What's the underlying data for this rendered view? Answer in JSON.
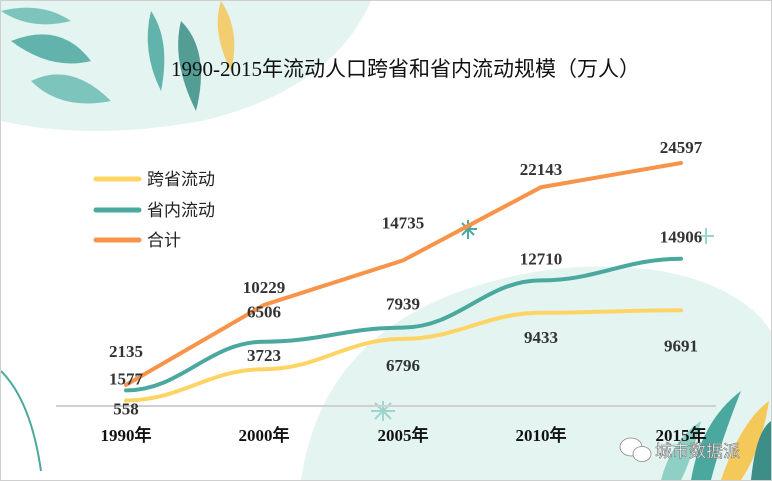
{
  "chart_data": {
    "type": "line",
    "title": "1990-2015年流动人口跨省和省内流动规模（万人）",
    "categories": [
      "1990年",
      "2000年",
      "2005年",
      "2010年",
      "2015年"
    ],
    "series": [
      {
        "name": "跨省流动",
        "color": "#FFD465",
        "values": [
          558,
          3723,
          6796,
          9433,
          9691
        ]
      },
      {
        "name": "省内流动",
        "color": "#4BA89F",
        "values": [
          1577,
          6506,
          7939,
          12710,
          14906
        ]
      },
      {
        "name": "合计",
        "color": "#F7944A",
        "values": [
          2135,
          10229,
          14735,
          22143,
          24597
        ]
      }
    ],
    "xlabel": "",
    "ylabel": "",
    "ylim": [
      0,
      25000
    ],
    "grid": false,
    "legend": "top-left",
    "data_labels": true
  },
  "watermark": {
    "text": "城市数据派",
    "icon": "wechat-icon"
  }
}
